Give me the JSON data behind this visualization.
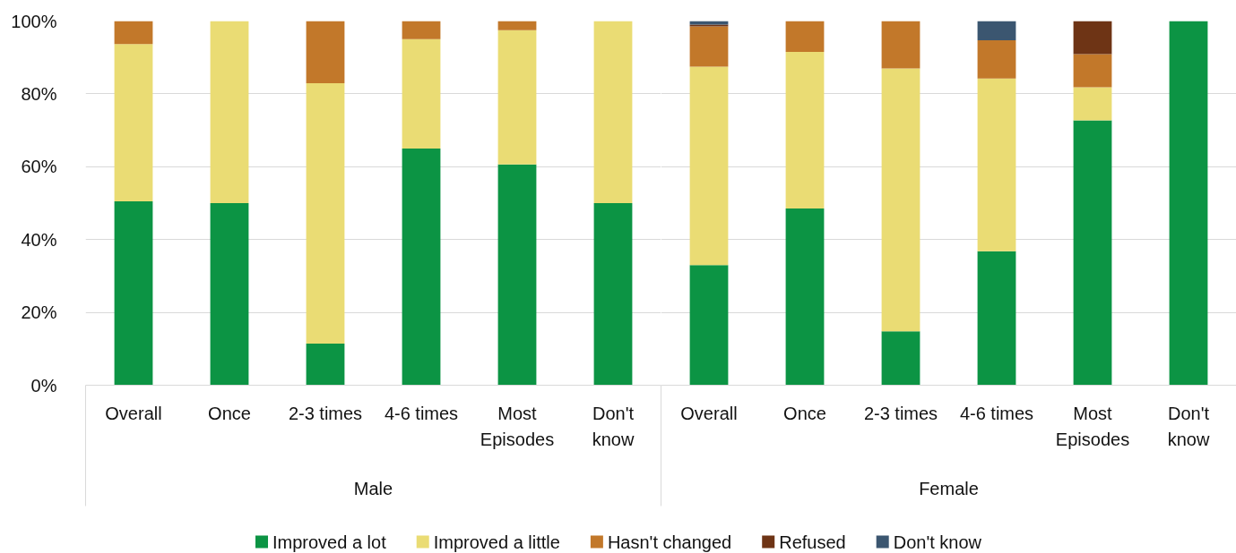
{
  "chart_data": [
    {
      "type": "bar",
      "stacked": true,
      "xlabel": "Male",
      "categories": [
        "Overall",
        "Once",
        "2-3 times",
        "4-6 times",
        "Most Episodes",
        "Don't know"
      ],
      "ylim": [
        0,
        100
      ],
      "yticks": [
        {
          "value": 0,
          "label": "0%"
        },
        {
          "value": 20,
          "label": "20%"
        },
        {
          "value": 40,
          "label": "40%"
        },
        {
          "value": 60,
          "label": "60%"
        },
        {
          "value": 80,
          "label": "80%"
        },
        {
          "value": 100,
          "label": "100%"
        }
      ],
      "grid": "y",
      "legend": "bottom",
      "series": [
        {
          "name": "Improved a lot",
          "color": "#0c9444",
          "values": [
            50.5,
            50,
            11.4,
            65,
            60.6,
            50
          ]
        },
        {
          "name": "Improved a little",
          "color": "#eadc74",
          "values": [
            43.2,
            50,
            71.5,
            30,
            36.9,
            50
          ]
        },
        {
          "name": "Hasn't changed",
          "color": "#c2782a",
          "values": [
            6.3,
            null,
            17.1,
            5,
            2.5,
            null
          ]
        },
        {
          "name": "Refused",
          "color": "#6e3415",
          "values": [
            null,
            null,
            null,
            null,
            null,
            null
          ]
        },
        {
          "name": "Don't know",
          "color": "#3b5670",
          "values": [
            null,
            null,
            null,
            null,
            null,
            null
          ]
        }
      ]
    },
    {
      "type": "bar",
      "stacked": true,
      "xlabel": "Female",
      "categories": [
        "Overall",
        "Once",
        "2-3 times",
        "4-6 times",
        "Most Episodes",
        "Don't know"
      ],
      "ylim": [
        0,
        100
      ],
      "yticks": [
        {
          "value": 0,
          "label": null
        },
        {
          "value": 20,
          "label": null
        },
        {
          "value": 40,
          "label": null
        },
        {
          "value": 60,
          "label": null
        },
        {
          "value": 80,
          "label": null
        },
        {
          "value": 100,
          "label": null
        }
      ],
      "grid": "y",
      "tick_labels": "x",
      "series": [
        {
          "color": "#0c9444",
          "values": [
            33,
            48.5,
            14.8,
            36.8,
            72.7,
            100
          ]
        },
        {
          "color": "#eadc74",
          "values": [
            54.5,
            43,
            72.2,
            47.4,
            9.1,
            null
          ]
        },
        {
          "color": "#c2782a",
          "values": [
            11,
            8.5,
            13,
            10.5,
            9.1,
            null
          ]
        },
        {
          "color": "#6e3415",
          "values": [
            0.5,
            null,
            null,
            null,
            9.1,
            null
          ]
        },
        {
          "color": "#3b5670",
          "values": [
            1,
            null,
            null,
            5.3,
            null,
            null
          ]
        }
      ]
    }
  ]
}
